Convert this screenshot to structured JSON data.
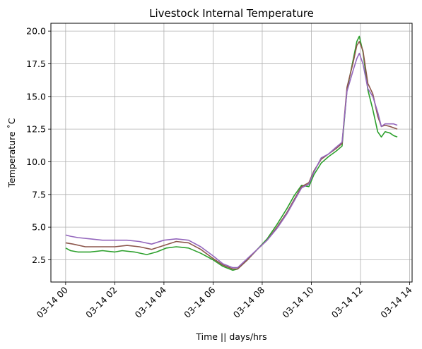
{
  "chart_data": {
    "type": "line",
    "title": "Livestock Internal Temperature",
    "xlabel": "Time || days/hrs",
    "ylabel": "Temperature ˚C",
    "grid": true,
    "x_tick_labels": [
      "03-14 00",
      "03-14 02",
      "03-14 04",
      "03-14 06",
      "03-14 08",
      "03-14 10",
      "03-14 12",
      "03-14 14"
    ],
    "x_tick_hours": [
      0,
      2,
      4,
      6,
      8,
      10,
      12,
      14
    ],
    "xlim_hours": [
      -0.6,
      14.1
    ],
    "y_ticks": [
      2.5,
      5.0,
      7.5,
      10.0,
      12.5,
      15.0,
      17.5,
      20.0
    ],
    "y_tick_labels": [
      "2.5",
      "5.0",
      "7.5",
      "10.0",
      "12.5",
      "15.0",
      "17.5",
      "20.0"
    ],
    "ylim": [
      0.8,
      20.6
    ],
    "series": [
      {
        "color": "#2ca02c",
        "points": [
          [
            0,
            3.4
          ],
          [
            0.2,
            3.2
          ],
          [
            0.5,
            3.1
          ],
          [
            1,
            3.1
          ],
          [
            1.5,
            3.2
          ],
          [
            2,
            3.1
          ],
          [
            2.3,
            3.2
          ],
          [
            2.8,
            3.1
          ],
          [
            3.3,
            2.9
          ],
          [
            3.7,
            3.1
          ],
          [
            4.1,
            3.4
          ],
          [
            4.5,
            3.5
          ],
          [
            5,
            3.4
          ],
          [
            5.5,
            3.0
          ],
          [
            6,
            2.5
          ],
          [
            6.4,
            2.0
          ],
          [
            6.8,
            1.7
          ],
          [
            7.0,
            1.8
          ],
          [
            7.4,
            2.5
          ],
          [
            7.8,
            3.3
          ],
          [
            8.2,
            4.1
          ],
          [
            8.6,
            5.2
          ],
          [
            9.0,
            6.4
          ],
          [
            9.3,
            7.4
          ],
          [
            9.6,
            8.2
          ],
          [
            9.9,
            8.1
          ],
          [
            10.1,
            9.0
          ],
          [
            10.4,
            9.9
          ],
          [
            10.7,
            10.4
          ],
          [
            11.0,
            10.8
          ],
          [
            11.25,
            11.2
          ],
          [
            11.45,
            15.5
          ],
          [
            11.7,
            17.8
          ],
          [
            11.85,
            19.2
          ],
          [
            11.95,
            19.6
          ],
          [
            12.1,
            18.4
          ],
          [
            12.3,
            15.5
          ],
          [
            12.5,
            14.0
          ],
          [
            12.7,
            12.3
          ],
          [
            12.85,
            11.9
          ],
          [
            13.0,
            12.3
          ],
          [
            13.2,
            12.2
          ],
          [
            13.35,
            12.0
          ],
          [
            13.5,
            11.9
          ]
        ]
      },
      {
        "color": "#8c564b",
        "points": [
          [
            0,
            3.8
          ],
          [
            0.3,
            3.7
          ],
          [
            0.8,
            3.5
          ],
          [
            1.5,
            3.5
          ],
          [
            2,
            3.5
          ],
          [
            2.5,
            3.6
          ],
          [
            3,
            3.5
          ],
          [
            3.5,
            3.3
          ],
          [
            4,
            3.6
          ],
          [
            4.5,
            3.9
          ],
          [
            5,
            3.8
          ],
          [
            5.5,
            3.3
          ],
          [
            6,
            2.6
          ],
          [
            6.4,
            2.1
          ],
          [
            6.8,
            1.8
          ],
          [
            7.0,
            1.8
          ],
          [
            7.4,
            2.5
          ],
          [
            7.8,
            3.3
          ],
          [
            8.2,
            4.0
          ],
          [
            8.6,
            5.0
          ],
          [
            9.0,
            6.1
          ],
          [
            9.3,
            7.1
          ],
          [
            9.6,
            8.1
          ],
          [
            9.9,
            8.4
          ],
          [
            10.1,
            9.3
          ],
          [
            10.4,
            10.2
          ],
          [
            10.7,
            10.6
          ],
          [
            11.0,
            11.0
          ],
          [
            11.25,
            11.4
          ],
          [
            11.45,
            15.7
          ],
          [
            11.7,
            17.6
          ],
          [
            11.85,
            18.9
          ],
          [
            11.95,
            19.2
          ],
          [
            12.1,
            18.5
          ],
          [
            12.3,
            16.0
          ],
          [
            12.5,
            15.2
          ],
          [
            12.7,
            13.5
          ],
          [
            12.85,
            12.7
          ],
          [
            13.0,
            12.8
          ],
          [
            13.2,
            12.7
          ],
          [
            13.35,
            12.6
          ],
          [
            13.5,
            12.5
          ]
        ]
      },
      {
        "color": "#9467bd",
        "points": [
          [
            0,
            4.4
          ],
          [
            0.2,
            4.3
          ],
          [
            0.5,
            4.2
          ],
          [
            1,
            4.1
          ],
          [
            1.5,
            4.0
          ],
          [
            2,
            4.0
          ],
          [
            2.5,
            4.0
          ],
          [
            3,
            3.9
          ],
          [
            3.5,
            3.7
          ],
          [
            4,
            4.0
          ],
          [
            4.5,
            4.1
          ],
          [
            5,
            4.0
          ],
          [
            5.5,
            3.5
          ],
          [
            6,
            2.8
          ],
          [
            6.4,
            2.2
          ],
          [
            6.8,
            1.9
          ],
          [
            7.0,
            1.9
          ],
          [
            7.4,
            2.6
          ],
          [
            7.8,
            3.3
          ],
          [
            8.2,
            4.0
          ],
          [
            8.6,
            4.9
          ],
          [
            9.0,
            6.0
          ],
          [
            9.3,
            7.0
          ],
          [
            9.6,
            8.0
          ],
          [
            9.9,
            8.3
          ],
          [
            10.1,
            9.2
          ],
          [
            10.4,
            10.3
          ],
          [
            10.7,
            10.6
          ],
          [
            11.0,
            11.1
          ],
          [
            11.25,
            11.5
          ],
          [
            11.45,
            15.4
          ],
          [
            11.7,
            17.0
          ],
          [
            11.85,
            17.9
          ],
          [
            11.95,
            18.3
          ],
          [
            12.1,
            17.5
          ],
          [
            12.3,
            15.6
          ],
          [
            12.5,
            15.0
          ],
          [
            12.7,
            13.8
          ],
          [
            12.85,
            12.7
          ],
          [
            13.0,
            12.9
          ],
          [
            13.2,
            12.9
          ],
          [
            13.35,
            12.9
          ],
          [
            13.5,
            12.8
          ]
        ]
      }
    ]
  }
}
